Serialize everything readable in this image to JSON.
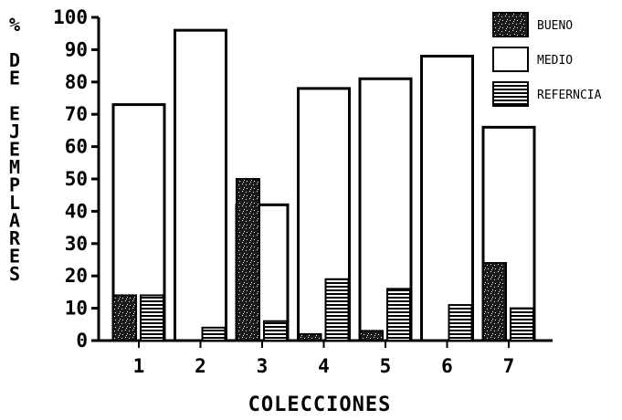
{
  "chart_data": {
    "type": "bar",
    "categories": [
      "1",
      "2",
      "3",
      "4",
      "5",
      "6",
      "7"
    ],
    "series": [
      {
        "name": "BUENO",
        "values": [
          14,
          0,
          50,
          2,
          3,
          0,
          24
        ]
      },
      {
        "name": "MEDIO",
        "values": [
          73,
          96,
          42,
          78,
          81,
          88,
          66
        ]
      },
      {
        "name": "REFERNCIA",
        "values": [
          14,
          4,
          6,
          19,
          16,
          11,
          10
        ]
      }
    ],
    "xlabel": "COLECCIONES",
    "ylabel": "% DE EJEMPLARES",
    "ylim": [
      0,
      100
    ],
    "yticks": [
      0,
      10,
      20,
      30,
      40,
      50,
      60,
      70,
      80,
      90,
      100
    ],
    "grid": false,
    "legend_position": "top-right",
    "series_fills": {
      "BUENO": "stipple-dark",
      "MEDIO": "white",
      "REFERNCIA": "horizontal-stripes"
    },
    "colors": {
      "ink": "#000000",
      "background": "#ffffff"
    }
  }
}
